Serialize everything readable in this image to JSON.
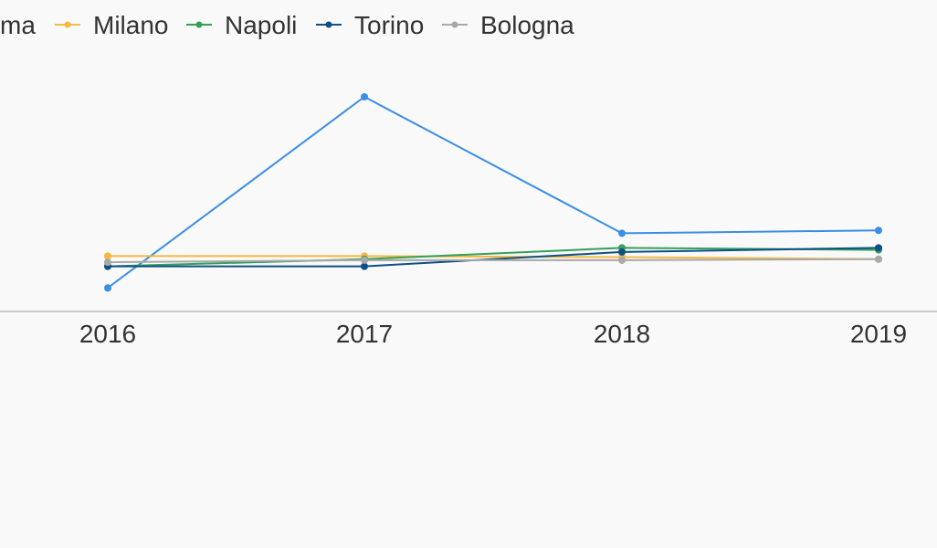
{
  "chart_data": {
    "type": "line",
    "title": "",
    "xlabel": "",
    "ylabel": "",
    "categories": [
      "2016",
      "2017",
      "2018",
      "2019"
    ],
    "ylim": [
      0,
      100
    ],
    "grid": false,
    "legend_position": "top",
    "series": [
      {
        "name": "Roma",
        "legend_label": "ma",
        "color": "#3a8ee6",
        "values": [
          7,
          100,
          33.6,
          35
        ]
      },
      {
        "name": "Milano",
        "color": "#f5b942",
        "values": [
          22.5,
          22.5,
          22,
          21
        ]
      },
      {
        "name": "Napoli",
        "color": "#34a058",
        "values": [
          17.5,
          21,
          26.5,
          25.5
        ]
      },
      {
        "name": "Torino",
        "color": "#0e4f86",
        "values": [
          17.5,
          17.5,
          24.5,
          26.5
        ]
      },
      {
        "name": "Bologna",
        "color": "#a8a8a8",
        "values": [
          19.5,
          20.5,
          20.5,
          21
        ]
      }
    ]
  }
}
